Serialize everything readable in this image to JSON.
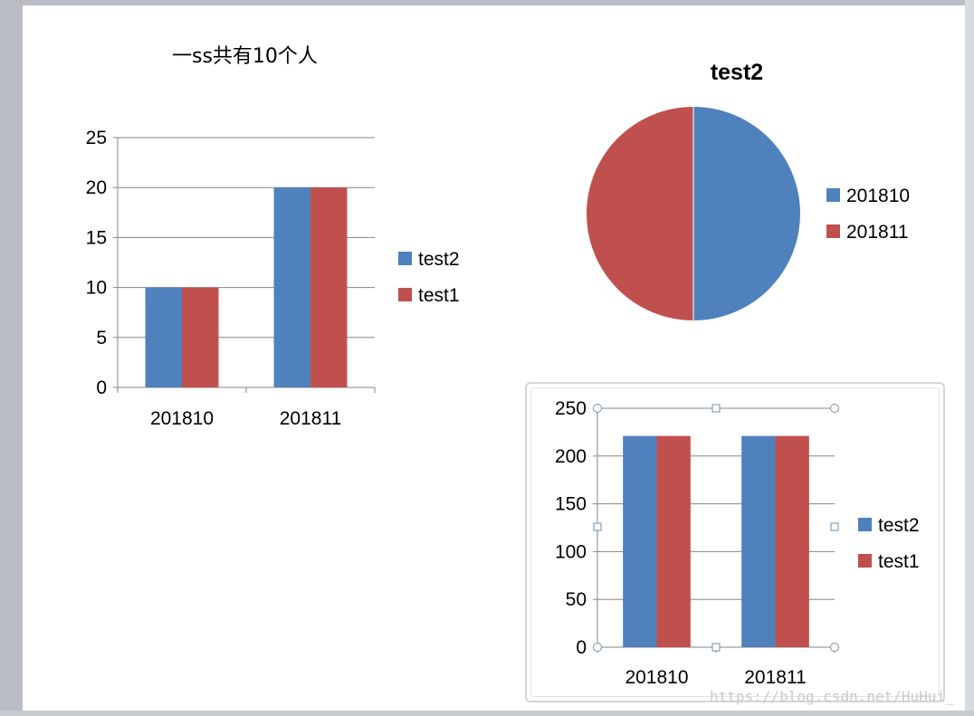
{
  "colors": {
    "series_blue": "#4f81bd",
    "series_red": "#c0504d",
    "grid": "#868686"
  },
  "chart_data": [
    {
      "type": "bar",
      "title": "一ss共有10个人",
      "categories": [
        "201810",
        "201811"
      ],
      "series": [
        {
          "name": "test2",
          "values": [
            10,
            20
          ],
          "color": "#4f81bd"
        },
        {
          "name": "test1",
          "values": [
            10,
            20
          ],
          "color": "#c0504d"
        }
      ],
      "ylim": [
        0,
        25
      ],
      "yticks": [
        "0",
        "5",
        "10",
        "15",
        "20",
        "25"
      ],
      "grid": true,
      "legend": "right"
    },
    {
      "type": "pie",
      "title": "test2",
      "categories": [
        "201810",
        "201811"
      ],
      "values": [
        10,
        10
      ],
      "colors": [
        "#4f81bd",
        "#c0504d"
      ],
      "legend": "right"
    },
    {
      "type": "bar",
      "title": "",
      "categories": [
        "201810",
        "201811"
      ],
      "series": [
        {
          "name": "test2",
          "values": [
            221,
            221
          ],
          "color": "#4f81bd"
        },
        {
          "name": "test1",
          "values": [
            221,
            221
          ],
          "color": "#c0504d"
        }
      ],
      "ylim": [
        0,
        250
      ],
      "yticks": [
        "0",
        "50",
        "100",
        "150",
        "200",
        "250"
      ],
      "grid": true,
      "legend": "right"
    }
  ],
  "watermark": "https://blog.csdn.net/HuHui_"
}
